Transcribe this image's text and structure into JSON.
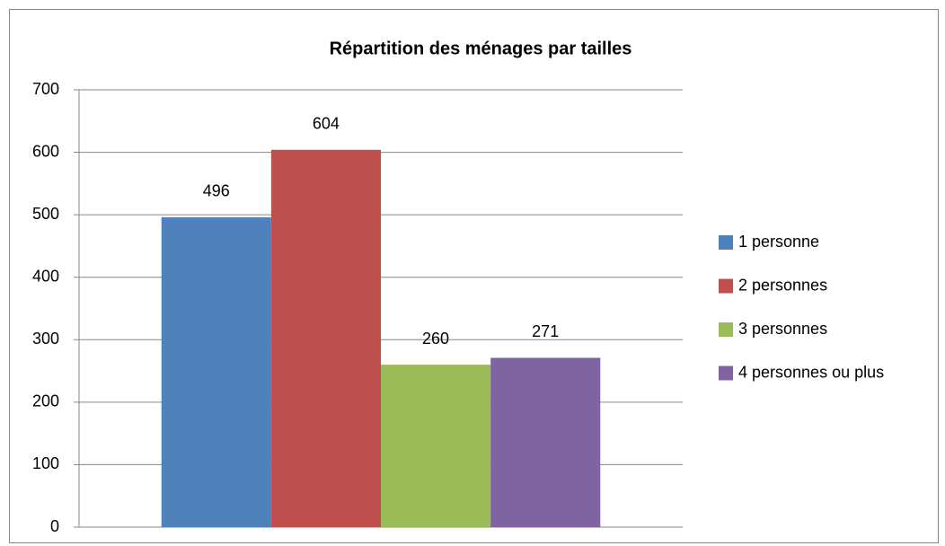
{
  "chart_data": {
    "type": "bar",
    "title": "Répartition des ménages par tailles",
    "categories": [
      null
    ],
    "series": [
      {
        "name": "1 personne",
        "color": "#4f81bd",
        "values": [
          496
        ]
      },
      {
        "name": "2 personnes",
        "color": "#c0504d",
        "values": [
          604
        ]
      },
      {
        "name": "3 personnes",
        "color": "#9bbb59",
        "values": [
          260
        ]
      },
      {
        "name": "4 personnes ou plus",
        "color": "#8064a2",
        "values": [
          271
        ]
      }
    ],
    "ylim": [
      0,
      700
    ],
    "yticks": [
      0,
      100,
      200,
      300,
      400,
      500,
      600,
      700
    ],
    "grid": true,
    "legend": "right",
    "data_labels": true
  }
}
